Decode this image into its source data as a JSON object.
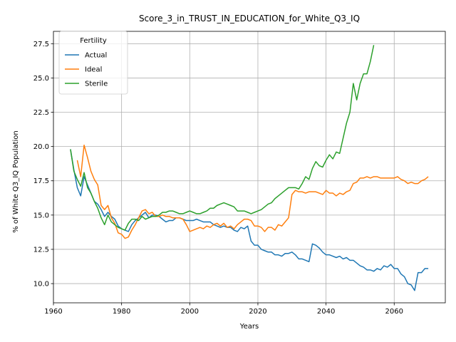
{
  "chart_data": {
    "type": "line",
    "title": "Score_3_in_TRUST_IN_EDUCATION_for_White_Q3_IQ",
    "xlabel": "Years",
    "ylabel": "% of White Q3_IQ Population",
    "xlim": [
      1960,
      2075
    ],
    "ylim": [
      8.6,
      28.4
    ],
    "xticks": [
      1960,
      1980,
      2000,
      2020,
      2040,
      2060
    ],
    "yticks": [
      10.0,
      12.5,
      15.0,
      17.5,
      20.0,
      22.5,
      25.0,
      27.5
    ],
    "xtick_labels": [
      "1960",
      "1980",
      "2000",
      "2020",
      "2040",
      "2060"
    ],
    "ytick_labels": [
      "10.0",
      "12.5",
      "15.0",
      "17.5",
      "20.0",
      "22.5",
      "25.0",
      "27.5"
    ],
    "grid": true,
    "legend": {
      "title": "Fertility",
      "placement": "top-left"
    },
    "series": [
      {
        "name": "Actual",
        "color": "#1f77b4",
        "x": [
          1965,
          1966,
          1967,
          1968,
          1969,
          1970,
          1971,
          1972,
          1973,
          1974,
          1975,
          1976,
          1977,
          1978,
          1979,
          1980,
          1981,
          1982,
          1983,
          1984,
          1985,
          1986,
          1987,
          1988,
          1989,
          1990,
          1991,
          1992,
          1993,
          1994,
          1995,
          1996,
          1997,
          1998,
          1999,
          2000,
          2001,
          2002,
          2003,
          2004,
          2005,
          2006,
          2007,
          2008,
          2009,
          2010,
          2011,
          2012,
          2013,
          2014,
          2015,
          2016,
          2017,
          2018,
          2019,
          2020,
          2021,
          2022,
          2023,
          2024,
          2025,
          2026,
          2027,
          2028,
          2029,
          2030,
          2031,
          2032,
          2033,
          2034,
          2035,
          2036,
          2037,
          2038,
          2039,
          2040,
          2041,
          2042,
          2043,
          2044,
          2045,
          2046,
          2047,
          2048,
          2049,
          2050,
          2051,
          2052,
          2053,
          2054,
          2055,
          2056,
          2057,
          2058,
          2059,
          2060,
          2061,
          2062,
          2063,
          2064,
          2065,
          2066,
          2067,
          2068,
          2069,
          2070
        ],
        "y": [
          19.8,
          18.3,
          17.0,
          16.4,
          17.8,
          17.2,
          16.6,
          16.0,
          15.8,
          15.4,
          14.9,
          15.2,
          14.9,
          14.7,
          14.2,
          14.0,
          13.9,
          13.8,
          14.3,
          14.6,
          14.8,
          15.0,
          15.2,
          14.8,
          15.0,
          15.0,
          14.9,
          14.7,
          14.5,
          14.6,
          14.6,
          14.8,
          14.8,
          14.7,
          14.6,
          14.6,
          14.6,
          14.7,
          14.6,
          14.5,
          14.5,
          14.5,
          14.3,
          14.2,
          14.1,
          14.2,
          14.1,
          14.1,
          13.9,
          13.8,
          14.1,
          14.0,
          14.2,
          13.1,
          12.8,
          12.8,
          12.5,
          12.4,
          12.3,
          12.3,
          12.1,
          12.1,
          12.0,
          12.2,
          12.2,
          12.3,
          12.1,
          11.8,
          11.8,
          11.7,
          11.6,
          12.9,
          12.8,
          12.6,
          12.3,
          12.1,
          12.1,
          12.0,
          11.9,
          12.0,
          11.8,
          11.9,
          11.7,
          11.7,
          11.5,
          11.3,
          11.2,
          11.0,
          11.0,
          10.9,
          11.1,
          11.0,
          11.3,
          11.2,
          11.4,
          11.1,
          11.1,
          10.7,
          10.5,
          10.0,
          9.9,
          9.5,
          10.8,
          10.8,
          11.1,
          11.1
        ]
      },
      {
        "name": "Ideal",
        "color": "#ff7f0e",
        "x": [
          1967,
          1968,
          1969,
          1970,
          1971,
          1972,
          1973,
          1974,
          1975,
          1976,
          1977,
          1978,
          1979,
          1980,
          1981,
          1982,
          1983,
          1984,
          1985,
          1986,
          1987,
          1988,
          1989,
          1990,
          1991,
          1992,
          1993,
          1994,
          1995,
          1996,
          1997,
          1998,
          1999,
          2000,
          2001,
          2002,
          2003,
          2004,
          2005,
          2006,
          2007,
          2008,
          2009,
          2010,
          2011,
          2012,
          2013,
          2014,
          2015,
          2016,
          2017,
          2018,
          2019,
          2020,
          2021,
          2022,
          2023,
          2024,
          2025,
          2026,
          2027,
          2028,
          2029,
          2030,
          2031,
          2032,
          2033,
          2034,
          2035,
          2036,
          2037,
          2038,
          2039,
          2040,
          2041,
          2042,
          2043,
          2044,
          2045,
          2046,
          2047,
          2048,
          2049,
          2050,
          2051,
          2052,
          2053,
          2054,
          2055,
          2056,
          2057,
          2058,
          2059,
          2060,
          2061,
          2062,
          2063,
          2064,
          2065,
          2066,
          2067,
          2068,
          2069,
          2070
        ],
        "y": [
          19.0,
          17.8,
          20.1,
          19.2,
          18.2,
          17.6,
          17.2,
          15.7,
          15.4,
          15.7,
          14.8,
          14.4,
          13.7,
          13.6,
          13.3,
          13.4,
          13.9,
          14.3,
          14.8,
          15.3,
          15.4,
          15.1,
          15.2,
          14.9,
          14.9,
          15.0,
          14.9,
          14.9,
          14.8,
          14.8,
          14.8,
          14.7,
          14.3,
          13.8,
          13.9,
          14.0,
          14.1,
          14.0,
          14.2,
          14.1,
          14.3,
          14.4,
          14.2,
          14.4,
          14.1,
          14.2,
          14.0,
          14.3,
          14.5,
          14.7,
          14.7,
          14.6,
          14.2,
          14.2,
          14.1,
          13.8,
          14.1,
          14.1,
          13.9,
          14.3,
          14.2,
          14.5,
          14.8,
          16.5,
          16.8,
          16.7,
          16.7,
          16.6,
          16.7,
          16.7,
          16.7,
          16.6,
          16.5,
          16.8,
          16.6,
          16.6,
          16.4,
          16.6,
          16.5,
          16.7,
          16.8,
          17.3,
          17.4,
          17.7,
          17.7,
          17.8,
          17.7,
          17.8,
          17.8,
          17.7,
          17.7,
          17.7,
          17.7,
          17.7,
          17.8,
          17.6,
          17.5,
          17.3,
          17.4,
          17.3,
          17.3,
          17.5,
          17.6,
          17.8
        ]
      },
      {
        "name": "Sterile",
        "color": "#2ca02c",
        "x": [
          1965,
          1966,
          1967,
          1968,
          1969,
          1970,
          1971,
          1972,
          1973,
          1974,
          1975,
          1976,
          1977,
          1978,
          1979,
          1980,
          1981,
          1982,
          1983,
          1984,
          1985,
          1986,
          1987,
          1988,
          1989,
          1990,
          1991,
          1992,
          1993,
          1994,
          1995,
          1996,
          1997,
          1998,
          1999,
          2000,
          2001,
          2002,
          2003,
          2004,
          2005,
          2006,
          2007,
          2008,
          2009,
          2010,
          2011,
          2012,
          2013,
          2014,
          2015,
          2016,
          2017,
          2018,
          2019,
          2020,
          2021,
          2022,
          2023,
          2024,
          2025,
          2026,
          2027,
          2028,
          2029,
          2030,
          2031,
          2032,
          2033,
          2034,
          2035,
          2036,
          2037,
          2038,
          2039,
          2040,
          2041,
          2042,
          2043,
          2044,
          2045,
          2046,
          2047,
          2048,
          2049,
          2050,
          2051,
          2052,
          2053,
          2054
        ],
        "y": [
          19.8,
          18.2,
          17.6,
          17.1,
          18.1,
          17.0,
          16.6,
          16.0,
          15.5,
          14.8,
          14.3,
          15.0,
          14.5,
          14.3,
          14.1,
          14.0,
          13.9,
          14.4,
          14.7,
          14.7,
          14.6,
          14.9,
          14.7,
          14.8,
          14.9,
          14.9,
          15.0,
          15.2,
          15.2,
          15.3,
          15.3,
          15.2,
          15.1,
          15.1,
          15.2,
          15.3,
          15.2,
          15.1,
          15.1,
          15.2,
          15.3,
          15.5,
          15.5,
          15.7,
          15.8,
          15.9,
          15.8,
          15.7,
          15.6,
          15.3,
          15.3,
          15.3,
          15.2,
          15.1,
          15.2,
          15.3,
          15.4,
          15.6,
          15.8,
          15.9,
          16.2,
          16.4,
          16.6,
          16.8,
          17.0,
          17.0,
          17.0,
          16.9,
          17.3,
          17.8,
          17.6,
          18.4,
          18.9,
          18.6,
          18.5,
          19.0,
          19.4,
          19.1,
          19.6,
          19.5,
          20.6,
          21.7,
          22.5,
          24.6,
          23.4,
          24.6,
          25.3,
          25.3,
          26.2,
          27.4
        ]
      }
    ]
  }
}
